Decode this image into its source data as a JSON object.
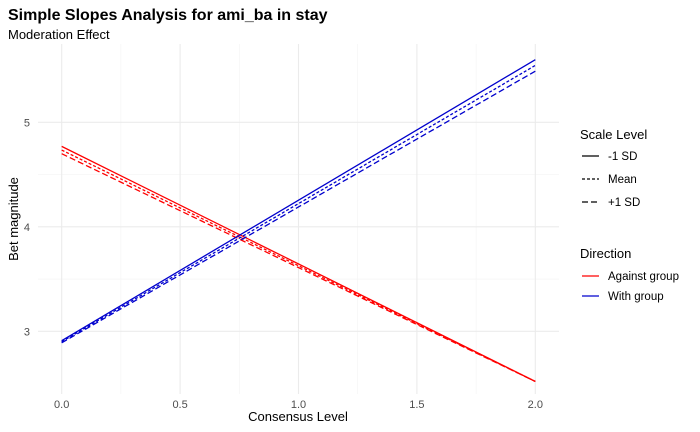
{
  "chart_data": {
    "type": "line",
    "title": "Simple Slopes Analysis for ami_ba in stay",
    "subtitle": "Moderation Effect",
    "xlabel": "Consensus Level",
    "ylabel": "Bet magnitude",
    "xlim": [
      -0.1,
      2.1
    ],
    "ylim": [
      2.4,
      5.75
    ],
    "xticks": [
      0.0,
      0.5,
      1.0,
      1.5,
      2.0
    ],
    "xtick_labels": [
      "0.0",
      "0.5",
      "1.0",
      "1.5",
      "2.0"
    ],
    "yticks": [
      3,
      4,
      5
    ],
    "ytick_labels": [
      "3",
      "4",
      "5"
    ],
    "grid": true,
    "legend_position": "right",
    "legends": [
      {
        "title": "Scale Level",
        "items": [
          {
            "label": "-1 SD",
            "linetype": "solid"
          },
          {
            "label": "Mean",
            "linetype": "dotted"
          },
          {
            "label": "+1 SD",
            "linetype": "dashed"
          }
        ]
      },
      {
        "title": "Direction",
        "items": [
          {
            "label": "Against group",
            "color": "#ff0000"
          },
          {
            "label": "With group",
            "color": "#0000cd"
          }
        ]
      }
    ],
    "series": [
      {
        "direction": "Against group",
        "scale": "-1 SD",
        "linetype": "solid",
        "color": "#ff0000",
        "x": [
          0,
          2
        ],
        "y": [
          4.77,
          2.52
        ]
      },
      {
        "direction": "Against group",
        "scale": "Mean",
        "linetype": "dotted",
        "color": "#ff0000",
        "x": [
          0,
          2
        ],
        "y": [
          4.735,
          2.52
        ]
      },
      {
        "direction": "Against group",
        "scale": "+1 SD",
        "linetype": "dashed",
        "color": "#ff0000",
        "x": [
          0,
          2
        ],
        "y": [
          4.7,
          2.52
        ]
      },
      {
        "direction": "With group",
        "scale": "-1 SD",
        "linetype": "solid",
        "color": "#0000cd",
        "x": [
          0,
          2
        ],
        "y": [
          2.91,
          5.6
        ]
      },
      {
        "direction": "With group",
        "scale": "Mean",
        "linetype": "dotted",
        "color": "#0000cd",
        "x": [
          0,
          2
        ],
        "y": [
          2.9,
          5.545
        ]
      },
      {
        "direction": "With group",
        "scale": "+1 SD",
        "linetype": "dashed",
        "color": "#0000cd",
        "x": [
          0,
          2
        ],
        "y": [
          2.89,
          5.49
        ]
      }
    ]
  }
}
